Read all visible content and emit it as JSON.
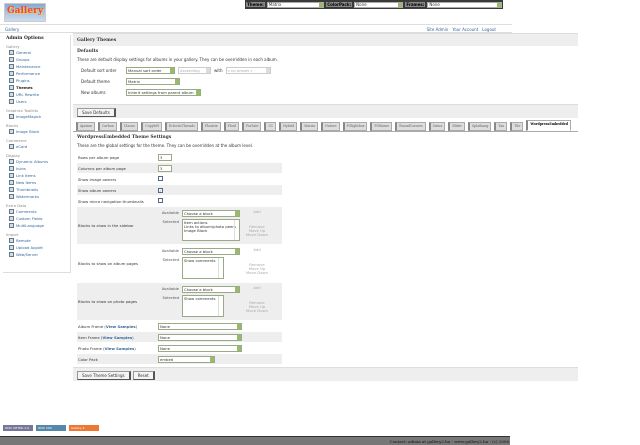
{
  "topbar": {
    "theme_label": "Theme:",
    "theme_value": "Matrix",
    "colorpack_label": "ColorPack:",
    "colorpack_value": "None",
    "frames_label": "Frames:",
    "frames_value": "None"
  },
  "logo": {
    "text": "Gallery"
  },
  "breadcrumb": "Gallery",
  "userlinks": [
    "Site Admin",
    "Your Account",
    "Logout"
  ],
  "sidebar": {
    "title": "Admin Options",
    "groups": [
      {
        "name": "Gallery",
        "items": [
          {
            "label": "General"
          },
          {
            "label": "Groups"
          },
          {
            "label": "Maintenance"
          },
          {
            "label": "Performance"
          },
          {
            "label": "Plugins"
          },
          {
            "label": "Themes",
            "current": true
          },
          {
            "label": "URL Rewrite"
          },
          {
            "label": "Users"
          }
        ]
      },
      {
        "name": "Graphics Toolkits",
        "items": [
          {
            "label": "ImageMagick"
          }
        ]
      },
      {
        "name": "Blocks",
        "items": [
          {
            "label": "Image Block"
          }
        ]
      },
      {
        "name": "Commerce",
        "items": [
          {
            "label": "eCard"
          }
        ]
      },
      {
        "name": "Display",
        "items": [
          {
            "label": "Dynamic Albums"
          },
          {
            "label": "Icons"
          },
          {
            "label": "Link Items"
          },
          {
            "label": "New Items"
          },
          {
            "label": "Thumbnails"
          },
          {
            "label": "Watermarks"
          }
        ]
      },
      {
        "name": "Extra Data",
        "items": [
          {
            "label": "Comments"
          },
          {
            "label": "Custom Fields"
          },
          {
            "label": "MultiLanguage"
          }
        ]
      },
      {
        "name": "Import",
        "items": [
          {
            "label": "Remote"
          },
          {
            "label": "Upload Applet"
          },
          {
            "label": "Web/Server"
          }
        ]
      }
    ]
  },
  "main": {
    "title": "Gallery Themes",
    "defaults": {
      "title": "Defaults",
      "desc": "These are default display settings for albums in your gallery. They can be overridden in each album.",
      "sort_label": "Default sort order",
      "sort_value": "Manual sort order",
      "sort_dir": "Ascending",
      "with_label": "with",
      "with_value": "« no preset »",
      "theme_label": "Default theme",
      "theme_value": "Matrix",
      "new_albums_label": "New albums",
      "new_albums_value": "Inherit settings from parent album",
      "save_button": "Save Defaults"
    },
    "tabs": [
      "Ajaxian",
      "Carbon",
      "Classic",
      "Copyleft",
      "EclecticThreads",
      "Floatrix",
      "Fluid",
      "ForSale",
      "G1",
      "Hybrid",
      "Matrix",
      "Nature",
      "PGlightbox",
      "PGtheme",
      "RoundCorners",
      "Siriux",
      "Slider",
      "Splathang",
      "Tan",
      "Tile",
      "WordpressEmbedded"
    ],
    "active_tab": "WordpressEmbedded",
    "settings": {
      "title": "WordpressEmbedded Theme Settings",
      "desc": "These are the global settings for the theme. They can be overridden at the album level.",
      "rows_label": "Rows per album page",
      "rows_value": "3",
      "cols_label": "Columns per album page",
      "cols_value": "3",
      "image_owners_label": "Show image owners",
      "image_owners": false,
      "album_owners_label": "Show album owners",
      "album_owners": true,
      "micro_nav_label": "Show micro navigation thumbnails",
      "micro_nav": false,
      "available_label": "Available",
      "selected_label": "Selected",
      "choose_block": "Choose a block",
      "add": "Add",
      "remove": "Remove",
      "move_up": "Move Up",
      "move_down": "Move Down",
      "sidebar_blocks_label": "Blocks to show in the sidebar",
      "sidebar_blocks": [
        "Item actions",
        "Links to album/photo peers",
        "Image Block"
      ],
      "album_blocks_label": "Blocks to show on album pages",
      "album_blocks": [
        "Show comments"
      ],
      "photo_blocks_label": "Blocks to show on photo pages",
      "photo_blocks": [
        "Show comments"
      ],
      "view_samples": "View Samples",
      "album_frame_label": "Album Frame",
      "album_frame": "None",
      "item_frame_label": "Item Frame",
      "item_frame": "None",
      "photo_frame_label": "Photo Frame",
      "photo_frame": "None",
      "color_pack_label": "Color Pack",
      "color_pack": "embed",
      "save_button": "Save Theme Settings",
      "reset_button": "Reset"
    }
  },
  "badges": [
    "W3C XHTML 1.0",
    "W3C CSS",
    "Gallery 2"
  ],
  "footer": "Contact: admin at gallery2.hu - www.gallery2.hu - (c) 2006"
}
